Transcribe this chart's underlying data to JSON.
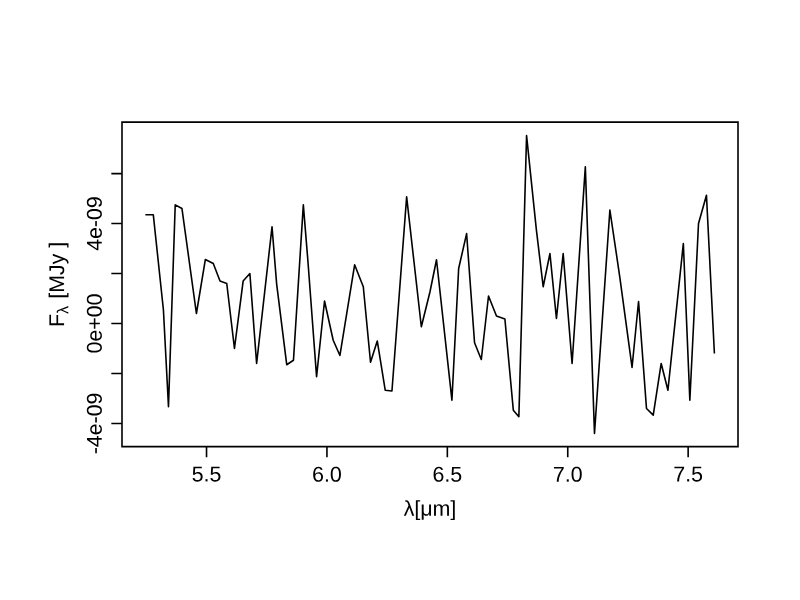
{
  "chart_data": {
    "type": "line",
    "xlabel": "λ[μm]",
    "ylabel": "F$_{λ}$ [MJy ]",
    "xlim": [
      5.149,
      7.707
    ],
    "ylim": [
      -4.93e-09,
      8.06e-09
    ],
    "xticks": [
      5.5,
      {
        "value": 6,
        "label": "6.0"
      },
      6.5,
      {
        "value": 7,
        "label": "7.0"
      },
      7.5
    ],
    "yticks": [
      {
        "value": -4e-09,
        "label": "-4e-09"
      },
      {
        "value": -2e-09,
        "label": null
      },
      {
        "value": 0,
        "label": "0e+00"
      },
      {
        "value": 2e-09,
        "label": null
      },
      {
        "value": 4e-09,
        "label": "4e-09"
      },
      {
        "value": 6e-09,
        "label": null
      }
    ],
    "series": [
      {
        "color": "#000000",
        "x": [
          5.246,
          5.279,
          5.321,
          5.342,
          5.37,
          5.398,
          5.458,
          5.495,
          5.528,
          5.556,
          5.584,
          5.616,
          5.652,
          5.68,
          5.708,
          5.772,
          5.791,
          5.833,
          5.861,
          5.902,
          5.921,
          5.957,
          5.99,
          6.026,
          6.054,
          6.115,
          6.151,
          6.181,
          6.209,
          6.242,
          6.27,
          6.331,
          6.392,
          6.428,
          6.455,
          6.519,
          6.547,
          6.58,
          6.613,
          6.641,
          6.671,
          6.704,
          6.739,
          6.774,
          6.797,
          6.829,
          6.87,
          6.898,
          6.926,
          6.953,
          6.981,
          7.018,
          7.073,
          7.111,
          7.175,
          7.216,
          7.267,
          7.294,
          7.327,
          7.355,
          7.388,
          7.416,
          7.48,
          7.507,
          7.543,
          7.576,
          7.609
        ],
        "values": [
          4.35e-09,
          4.35e-09,
          5.4e-10,
          -3.33e-09,
          4.75e-09,
          4.6e-09,
          4e-10,
          2.56e-09,
          2.4e-09,
          1.7e-09,
          1.6e-09,
          -1e-09,
          1.7e-09,
          2e-09,
          -1.6e-09,
          3.87e-09,
          1.6e-09,
          -1.65e-09,
          -1.47e-09,
          4.75e-09,
          2.5e-09,
          -2.13e-09,
          9e-10,
          -6.7e-10,
          -1.28e-09,
          2.35e-09,
          1.47e-09,
          -1.55e-09,
          -7e-10,
          -2.67e-09,
          -2.7e-09,
          5.07e-09,
          -1.3e-10,
          1.27e-09,
          2.55e-09,
          -3.07e-09,
          2.2e-09,
          3.6e-09,
          -7.7e-10,
          -1.44e-09,
          1.1e-09,
          3e-10,
          1.8e-10,
          -3.47e-09,
          -3.73e-09,
          7.52e-09,
          3.73e-09,
          1.47e-09,
          2.8e-09,
          2e-10,
          2.8e-09,
          -1.6e-09,
          6.27e-09,
          -4.4e-09,
          4.54e-09,
          1.87e-09,
          -1.76e-09,
          8.8e-10,
          -3.4e-09,
          -3.67e-09,
          -1.6e-09,
          -2.67e-09,
          3.2e-09,
          -3.07e-09,
          4e-09,
          5.13e-09,
          -1.2e-09
        ]
      }
    ]
  }
}
